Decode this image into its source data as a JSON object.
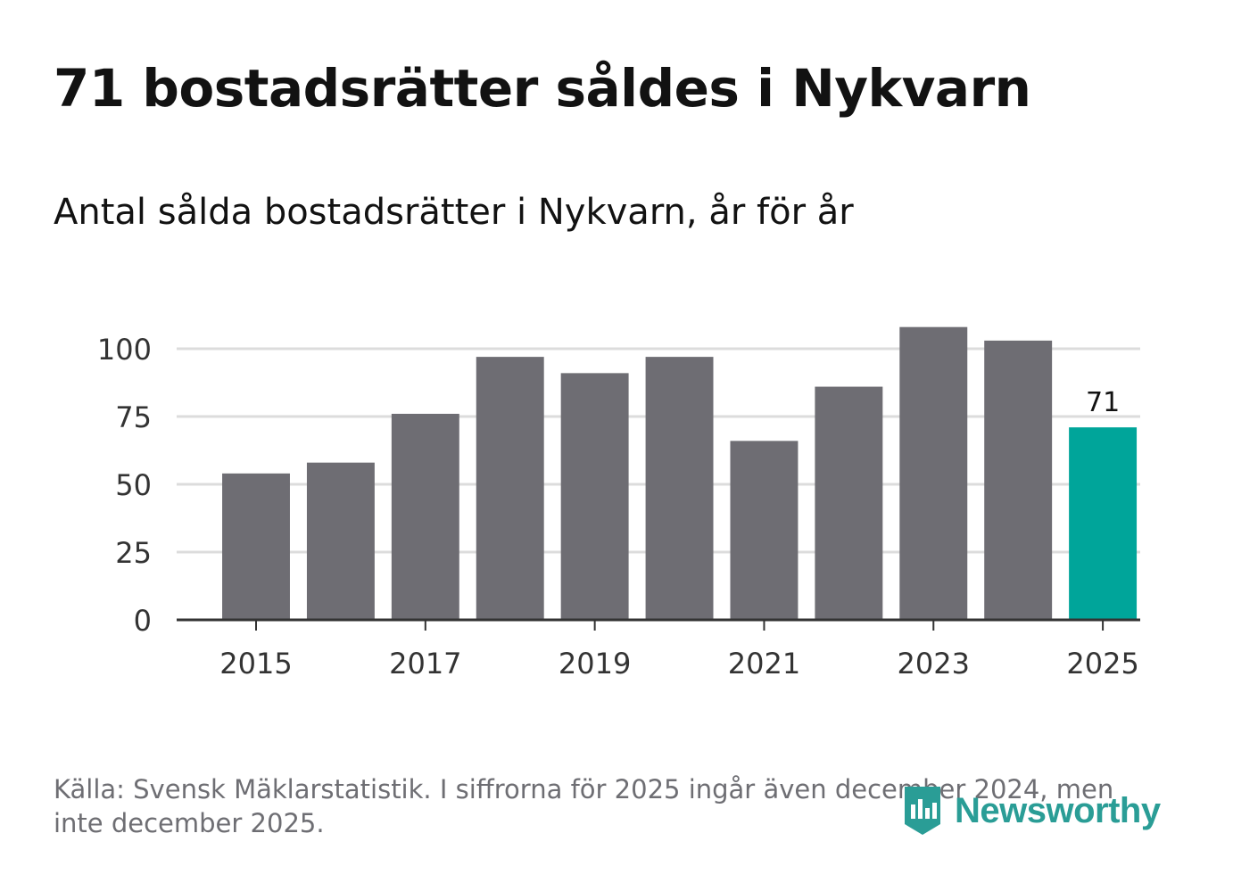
{
  "title": "71 bostadsrätter såldes i Nykvarn",
  "subtitle": "Antal sålda bostadsrätter i Nykvarn, år för år",
  "source": "Källa: Svensk Mäklarstatistik. I siffrorna för 2025 ingår även december 2024, men inte december 2025.",
  "brand": {
    "name": "Newsworthy",
    "color": "#2a9d96"
  },
  "colors": {
    "bar": "#6e6d73",
    "highlight": "#00a59a",
    "grid": "#dcdcdc",
    "axis": "#333333"
  },
  "chart_data": {
    "type": "bar",
    "title": "Antal sålda bostadsrätter i Nykvarn, år för år",
    "xlabel": "",
    "ylabel": "",
    "categories": [
      "2015",
      "2016",
      "2017",
      "2018",
      "2019",
      "2020",
      "2021",
      "2022",
      "2023",
      "2024",
      "2025"
    ],
    "values": [
      54,
      58,
      76,
      97,
      91,
      97,
      66,
      86,
      108,
      103,
      71
    ],
    "highlight_index": 10,
    "highlight_label": "71",
    "ylim": [
      0,
      110
    ],
    "yticks": [
      0,
      25,
      50,
      75,
      100
    ],
    "xticks": [
      "2015",
      "2017",
      "2019",
      "2021",
      "2023",
      "2025"
    ],
    "grid": true
  }
}
